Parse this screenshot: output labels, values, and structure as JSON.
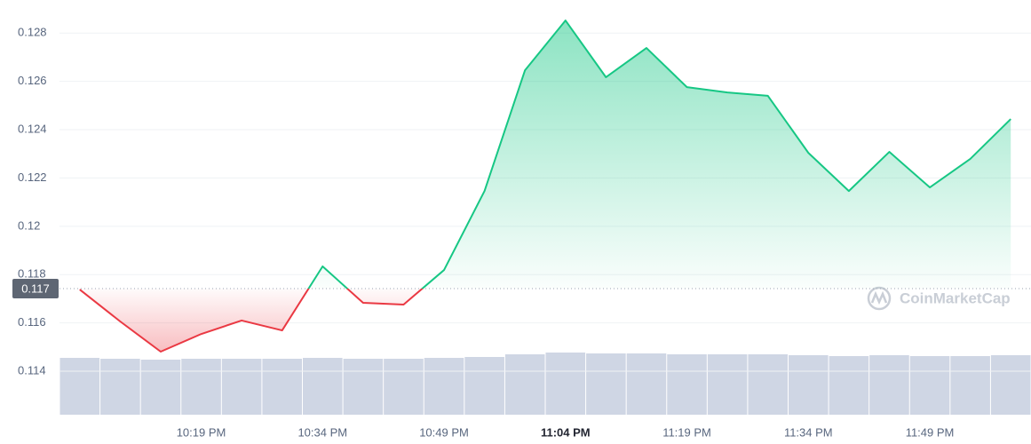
{
  "chart_data": {
    "type": "line",
    "categories": [
      null,
      null,
      null,
      "10:19 PM",
      null,
      null,
      "10:34 PM",
      null,
      null,
      "10:49 PM",
      null,
      null,
      "11:04 PM",
      null,
      null,
      "11:19 PM",
      null,
      null,
      "11:34 PM",
      null,
      null,
      "11:49 PM",
      null,
      null
    ],
    "highlight_category": 12,
    "series": [
      {
        "values": [
          0.11738,
          0.11606,
          0.11481,
          0.11554,
          0.1161,
          0.11569,
          0.11834,
          0.11683,
          0.11676,
          0.11819,
          0.12146,
          0.12646,
          0.12852,
          0.12617,
          0.12738,
          0.12576,
          0.12554,
          0.1254,
          0.12304,
          0.12146,
          0.12308,
          0.12161,
          0.12279,
          0.12444
        ],
        "up_color": "#16c784",
        "down_color": "#ea3943"
      }
    ],
    "volume": {
      "values": [
        64,
        63,
        62,
        63,
        63,
        63,
        64,
        63,
        63,
        64,
        65,
        68,
        70,
        69,
        69,
        68,
        68,
        68,
        67,
        66,
        67,
        66,
        66,
        67
      ],
      "color": "#cfd6e4"
    },
    "baseline": {
      "value": 0.11742,
      "label": "0.117"
    },
    "ylim": [
      0.1122,
      0.129
    ],
    "yticks": [
      0.114,
      0.116,
      0.118,
      0.12,
      0.122,
      0.124,
      0.126,
      0.128
    ],
    "grid": true,
    "watermark": "CoinMarketCap"
  }
}
